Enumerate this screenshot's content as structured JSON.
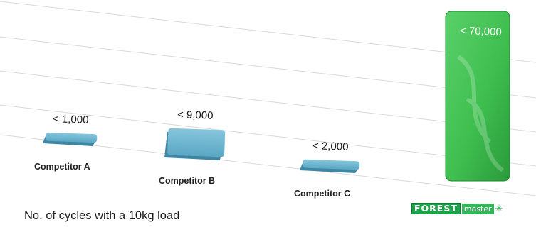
{
  "chart_data": {
    "type": "bar",
    "categories": [
      "Competitor A",
      "Competitor B",
      "Competitor C",
      "FOREST master"
    ],
    "values": [
      1000,
      9000,
      2000,
      70000
    ],
    "value_labels": [
      "< 1,000",
      "< 9,000",
      "< 2,000",
      "< 70,000"
    ],
    "caption": "No. of cycles with a 10kg load",
    "colors": {
      "competitor": "#5aa7c4",
      "competitor_side": "#3f86a3",
      "forest": "#3fbf4f",
      "forest_dark": "#2a9a3b",
      "grid": "#d9d9d9"
    },
    "grid": true
  },
  "brand": {
    "forest": "FOREST",
    "master": "master",
    "flake": "✳"
  }
}
